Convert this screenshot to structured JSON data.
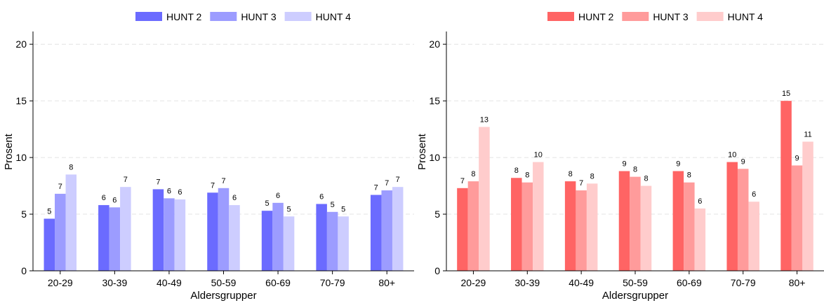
{
  "chart_data": [
    {
      "type": "bar",
      "categories": [
        "20-29",
        "30-39",
        "40-49",
        "50-59",
        "60-69",
        "70-79",
        "80+"
      ],
      "series": [
        {
          "name": "HUNT 2",
          "color": "#6b6bff",
          "values": [
            4.6,
            5.8,
            7.2,
            6.9,
            5.3,
            5.9,
            6.7
          ],
          "labels": [
            "5",
            "6",
            "7",
            "7",
            "5",
            "6",
            "7"
          ]
        },
        {
          "name": "HUNT 3",
          "color": "#9c9cff",
          "values": [
            6.8,
            5.6,
            6.4,
            7.3,
            6.0,
            5.2,
            7.1
          ],
          "labels": [
            "7",
            "6",
            "6",
            "7",
            "6",
            "5",
            "7"
          ]
        },
        {
          "name": "HUNT 4",
          "color": "#cdcdff",
          "values": [
            8.5,
            7.4,
            6.3,
            5.8,
            4.8,
            4.8,
            7.4
          ],
          "labels": [
            "8",
            "7",
            "6",
            "6",
            "5",
            "5",
            "7"
          ]
        }
      ],
      "xlabel": "Aldersgrupper",
      "ylabel": "Prosent",
      "ylim": [
        0,
        21
      ],
      "yticks": [
        "0",
        "5",
        "10",
        "15",
        "20"
      ],
      "grid": true,
      "legend_position": "top"
    },
    {
      "type": "bar",
      "categories": [
        "20-29",
        "30-39",
        "40-49",
        "50-59",
        "60-69",
        "70-79",
        "80+"
      ],
      "series": [
        {
          "name": "HUNT 2",
          "color": "#ff6464",
          "values": [
            7.3,
            8.2,
            7.9,
            8.8,
            8.8,
            9.6,
            15.0
          ],
          "labels": [
            "7",
            "8",
            "8",
            "9",
            "9",
            "10",
            "15"
          ]
        },
        {
          "name": "HUNT 3",
          "color": "#ff9b9b",
          "values": [
            7.9,
            7.8,
            7.1,
            8.3,
            7.8,
            9.0,
            9.3
          ],
          "labels": [
            "8",
            "8",
            "7",
            "8",
            "8",
            "9",
            "9"
          ]
        },
        {
          "name": "HUNT 4",
          "color": "#ffcccc",
          "values": [
            12.7,
            9.6,
            7.7,
            7.5,
            5.5,
            6.1,
            11.4
          ],
          "labels": [
            "13",
            "10",
            "8",
            "8",
            "6",
            "6",
            "11"
          ]
        }
      ],
      "xlabel": "Aldersgrupper",
      "ylabel": "Prosent",
      "ylim": [
        0,
        21
      ],
      "yticks": [
        "0",
        "5",
        "10",
        "15",
        "20"
      ],
      "grid": true,
      "legend_position": "top"
    }
  ]
}
